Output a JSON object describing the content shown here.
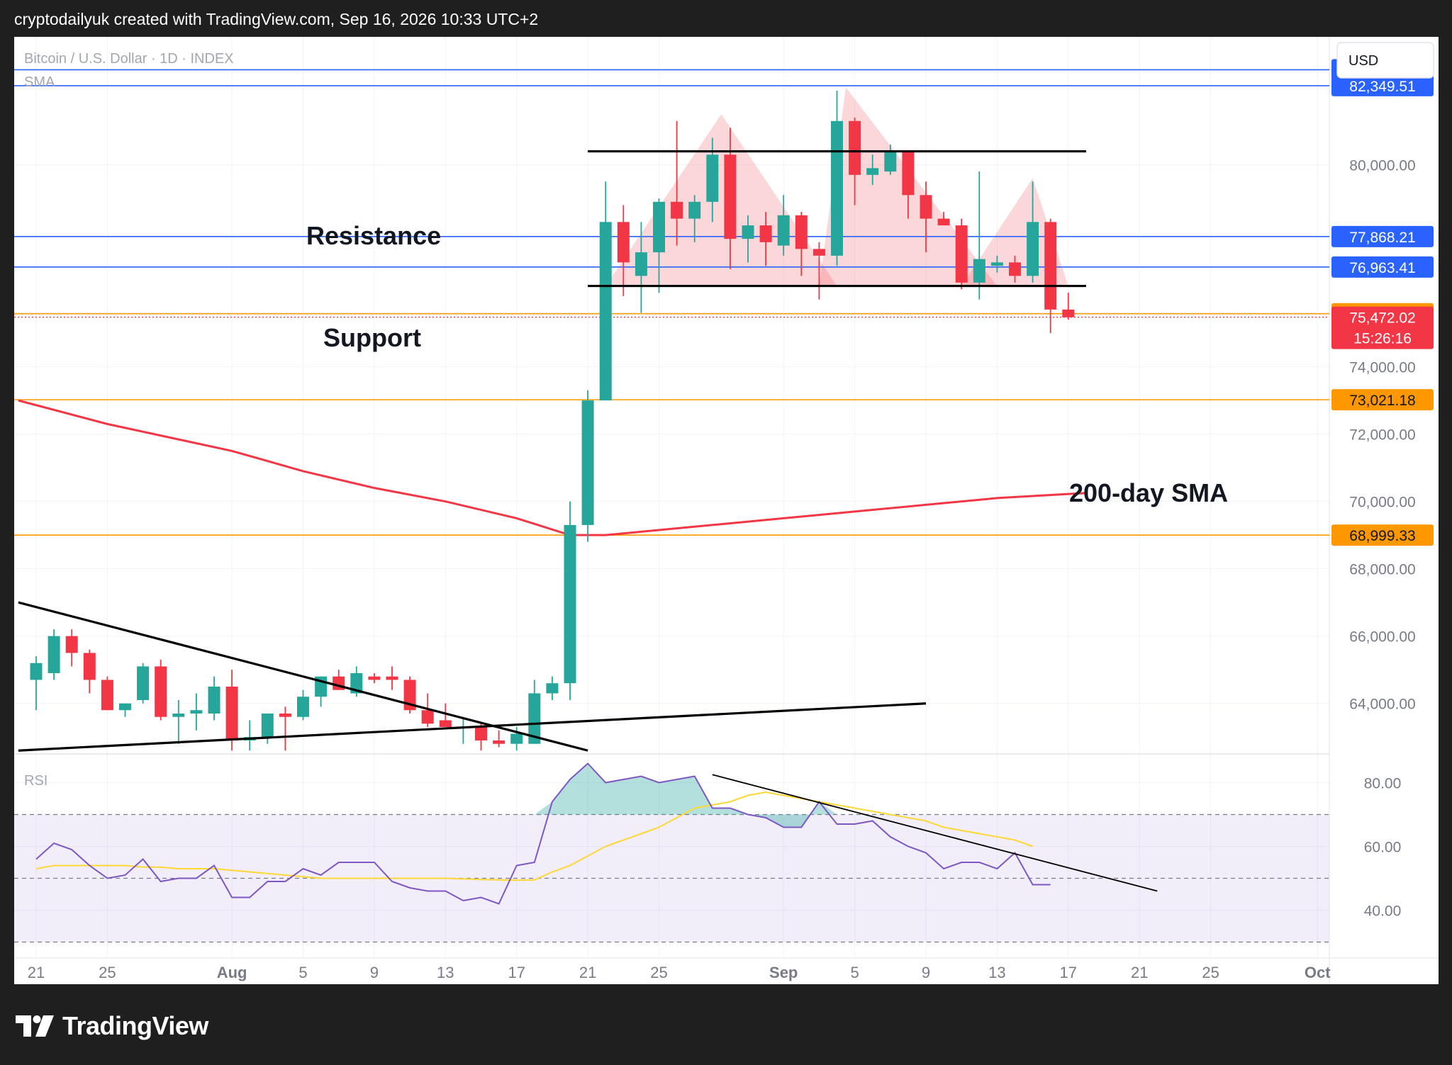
{
  "attribution": "cryptodailyuk created with TradingView.com, Sep 16, 2026 10:33 UTC+2",
  "chart_header": {
    "symbol": "Bitcoin / U.S. Dollar · 1D · INDEX",
    "indicator": "SMA",
    "currency_button": "USD",
    "rsi_label": "RSI"
  },
  "annotations": {
    "resistance": "Resistance",
    "support": "Support",
    "sma200": "200-day SMA"
  },
  "footer": {
    "brand": "TradingView"
  },
  "colors": {
    "up": "#26a69a",
    "down": "#f23645",
    "blue_line": "#2962ff",
    "orange_line": "#ff9800",
    "sma": "#f23645",
    "rsi": "#7e57c2",
    "rsi_ma": "#fdd835"
  },
  "chart_data": [
    {
      "type": "candlestick",
      "title": "Bitcoin / U.S. Dollar · 1D · INDEX",
      "ylim": [
        62500,
        83800
      ],
      "y_ticks": [
        "80,000.00",
        "74,000.00",
        "72,000.00",
        "70,000.00",
        "68,000.00",
        "66,000.00",
        "64,000.00"
      ],
      "y_tick_values": [
        80000,
        74000,
        72000,
        70000,
        68000,
        66000,
        64000
      ],
      "x_ticks": [
        {
          "label": "21",
          "day": 0,
          "bold": false
        },
        {
          "label": "25",
          "day": 4,
          "bold": false
        },
        {
          "label": "Aug",
          "day": 11,
          "bold": true
        },
        {
          "label": "5",
          "day": 15,
          "bold": false
        },
        {
          "label": "9",
          "day": 19,
          "bold": false
        },
        {
          "label": "13",
          "day": 23,
          "bold": false
        },
        {
          "label": "17",
          "day": 27,
          "bold": false
        },
        {
          "label": "21",
          "day": 31,
          "bold": false
        },
        {
          "label": "25",
          "day": 35,
          "bold": false
        },
        {
          "label": "Sep",
          "day": 42,
          "bold": true
        },
        {
          "label": "5",
          "day": 46,
          "bold": false
        },
        {
          "label": "9",
          "day": 50,
          "bold": false
        },
        {
          "label": "13",
          "day": 54,
          "bold": false
        },
        {
          "label": "17",
          "day": 58,
          "bold": false
        },
        {
          "label": "21",
          "day": 62,
          "bold": false
        },
        {
          "label": "25",
          "day": 66,
          "bold": false
        },
        {
          "label": "Oct",
          "day": 72,
          "bold": true
        }
      ],
      "candles": [
        {
          "o": 64700,
          "h": 65400,
          "l": 63800,
          "c": 65200
        },
        {
          "o": 64900,
          "h": 66200,
          "l": 64700,
          "c": 66000
        },
        {
          "o": 66000,
          "h": 66200,
          "l": 65100,
          "c": 65500
        },
        {
          "o": 65500,
          "h": 65600,
          "l": 64300,
          "c": 64700
        },
        {
          "o": 64700,
          "h": 64800,
          "l": 63800,
          "c": 63800
        },
        {
          "o": 63800,
          "h": 64000,
          "l": 63600,
          "c": 64000
        },
        {
          "o": 64100,
          "h": 65200,
          "l": 64000,
          "c": 65100
        },
        {
          "o": 65100,
          "h": 65300,
          "l": 63500,
          "c": 63600
        },
        {
          "o": 63600,
          "h": 64100,
          "l": 62800,
          "c": 63700
        },
        {
          "o": 63700,
          "h": 64300,
          "l": 63200,
          "c": 63800
        },
        {
          "o": 63700,
          "h": 64800,
          "l": 63500,
          "c": 64500
        },
        {
          "o": 64500,
          "h": 65000,
          "l": 62600,
          "c": 62900
        },
        {
          "o": 62900,
          "h": 63500,
          "l": 62600,
          "c": 63000
        },
        {
          "o": 63000,
          "h": 63700,
          "l": 62800,
          "c": 63700
        },
        {
          "o": 63700,
          "h": 63900,
          "l": 62600,
          "c": 63600
        },
        {
          "o": 63600,
          "h": 64400,
          "l": 63500,
          "c": 64200
        },
        {
          "o": 64200,
          "h": 64800,
          "l": 63900,
          "c": 64800
        },
        {
          "o": 64800,
          "h": 65000,
          "l": 64400,
          "c": 64400
        },
        {
          "o": 64300,
          "h": 65100,
          "l": 64200,
          "c": 64900
        },
        {
          "o": 64800,
          "h": 64900,
          "l": 64600,
          "c": 64700
        },
        {
          "o": 64800,
          "h": 65100,
          "l": 64400,
          "c": 64700
        },
        {
          "o": 64700,
          "h": 64800,
          "l": 63700,
          "c": 63800
        },
        {
          "o": 63800,
          "h": 64300,
          "l": 63300,
          "c": 63400
        },
        {
          "o": 63500,
          "h": 64000,
          "l": 63300,
          "c": 63300
        },
        {
          "o": 63300,
          "h": 63600,
          "l": 62800,
          "c": 63300
        },
        {
          "o": 63300,
          "h": 63400,
          "l": 62600,
          "c": 62900
        },
        {
          "o": 62900,
          "h": 63200,
          "l": 62700,
          "c": 62800
        },
        {
          "o": 62800,
          "h": 63300,
          "l": 62600,
          "c": 63100
        },
        {
          "o": 62800,
          "h": 64700,
          "l": 62800,
          "c": 64300
        },
        {
          "o": 64300,
          "h": 64800,
          "l": 64100,
          "c": 64600
        },
        {
          "o": 64600,
          "h": 70000,
          "l": 64100,
          "c": 69300
        },
        {
          "o": 69300,
          "h": 73300,
          "l": 68800,
          "c": 73000
        },
        {
          "o": 73000,
          "h": 79500,
          "l": 73000,
          "c": 78300
        },
        {
          "o": 78300,
          "h": 78800,
          "l": 76100,
          "c": 77100
        },
        {
          "o": 76700,
          "h": 78300,
          "l": 75600,
          "c": 77400
        },
        {
          "o": 77400,
          "h": 79000,
          "l": 76200,
          "c": 78900
        },
        {
          "o": 78900,
          "h": 81300,
          "l": 77600,
          "c": 78400
        },
        {
          "o": 78400,
          "h": 79100,
          "l": 77700,
          "c": 78900
        },
        {
          "o": 78900,
          "h": 80800,
          "l": 78300,
          "c": 80300
        },
        {
          "o": 80300,
          "h": 81100,
          "l": 76900,
          "c": 77800
        },
        {
          "o": 77800,
          "h": 78500,
          "l": 77100,
          "c": 78200
        },
        {
          "o": 78200,
          "h": 78600,
          "l": 77000,
          "c": 77700
        },
        {
          "o": 77600,
          "h": 79100,
          "l": 77300,
          "c": 78500
        },
        {
          "o": 78500,
          "h": 78600,
          "l": 76700,
          "c": 77500
        },
        {
          "o": 77500,
          "h": 77700,
          "l": 76000,
          "c": 77300
        },
        {
          "o": 77300,
          "h": 82200,
          "l": 77000,
          "c": 81300
        },
        {
          "o": 81300,
          "h": 81400,
          "l": 78800,
          "c": 79700
        },
        {
          "o": 79700,
          "h": 80300,
          "l": 79400,
          "c": 79900
        },
        {
          "o": 79800,
          "h": 80600,
          "l": 79700,
          "c": 80400
        },
        {
          "o": 80400,
          "h": 80400,
          "l": 78400,
          "c": 79100
        },
        {
          "o": 79100,
          "h": 79500,
          "l": 77400,
          "c": 78400
        },
        {
          "o": 78400,
          "h": 78600,
          "l": 78200,
          "c": 78200
        },
        {
          "o": 78200,
          "h": 78400,
          "l": 76300,
          "c": 76500
        },
        {
          "o": 76500,
          "h": 79800,
          "l": 76000,
          "c": 77200
        },
        {
          "o": 77000,
          "h": 77300,
          "l": 76800,
          "c": 77100
        },
        {
          "o": 77100,
          "h": 77300,
          "l": 76500,
          "c": 76700
        },
        {
          "o": 76700,
          "h": 79500,
          "l": 76500,
          "c": 78300
        },
        {
          "o": 78300,
          "h": 78400,
          "l": 75000,
          "c": 75700
        },
        {
          "o": 75700,
          "h": 76200,
          "l": 75400,
          "c": 75470
        }
      ],
      "sma200": [
        {
          "day": -1,
          "value": 73000
        },
        {
          "day": 4,
          "value": 72300
        },
        {
          "day": 11,
          "value": 71500
        },
        {
          "day": 15,
          "value": 70900
        },
        {
          "day": 19,
          "value": 70400
        },
        {
          "day": 23,
          "value": 70000
        },
        {
          "day": 27,
          "value": 69500
        },
        {
          "day": 30,
          "value": 69000
        },
        {
          "day": 32,
          "value": 69000
        },
        {
          "day": 34,
          "value": 69100
        },
        {
          "day": 38,
          "value": 69300
        },
        {
          "day": 42,
          "value": 69500
        },
        {
          "day": 46,
          "value": 69700
        },
        {
          "day": 50,
          "value": 69900
        },
        {
          "day": 54,
          "value": 70100
        },
        {
          "day": 59,
          "value": 70250
        }
      ],
      "horizontal_levels": [
        {
          "value": 82823.44,
          "label": "82,823.44",
          "color": "blue"
        },
        {
          "value": 82349.51,
          "label": "82,349.51",
          "color": "blue"
        },
        {
          "value": 77868.21,
          "label": "77,868.21",
          "color": "blue"
        },
        {
          "value": 76963.41,
          "label": "76,963.41",
          "color": "blue"
        },
        {
          "value": 75576.75,
          "label": "75,576.75",
          "color": "orange"
        },
        {
          "value": 73021.18,
          "label": "73,021.18",
          "color": "orange"
        },
        {
          "value": 68999.33,
          "label": "68,999.33",
          "color": "orange"
        }
      ],
      "last_price": {
        "value": 75472.02,
        "label": "75,472.02",
        "countdown": "15:26:16"
      },
      "trendlines": [
        {
          "from": {
            "day": -1,
            "value": 67000
          },
          "to": {
            "day": 31,
            "value": 62600
          }
        },
        {
          "from": {
            "day": -1,
            "value": 62600
          },
          "to": {
            "day": 50,
            "value": 64000
          }
        },
        {
          "from": {
            "day": 31,
            "value": 80400
          },
          "to": {
            "day": 59,
            "value": 80400
          }
        },
        {
          "from": {
            "day": 31,
            "value": 76400
          },
          "to": {
            "day": 59,
            "value": 76400
          }
        }
      ],
      "shaded_peaks": [
        {
          "points": [
            {
              "day": 32,
              "value": 76400
            },
            {
              "day": 38.5,
              "value": 81500
            },
            {
              "day": 45,
              "value": 76400
            }
          ]
        },
        {
          "points": [
            {
              "day": 44,
              "value": 76400
            },
            {
              "day": 45.5,
              "value": 82300
            },
            {
              "day": 54,
              "value": 76400
            }
          ]
        },
        {
          "points": [
            {
              "day": 52,
              "value": 76400
            },
            {
              "day": 56,
              "value": 79600
            },
            {
              "day": 58,
              "value": 76400
            }
          ]
        }
      ]
    },
    {
      "type": "line",
      "title": "RSI",
      "ylim": [
        25,
        89
      ],
      "y_ticks": [
        "80.00",
        "60.00",
        "40.00"
      ],
      "y_tick_values": [
        80,
        60,
        40
      ],
      "bands": {
        "upper": 70,
        "middle": 50,
        "lower": 30
      },
      "series": [
        {
          "key": "rsi",
          "values": [
            56,
            61,
            59,
            54,
            50,
            51,
            56,
            49,
            50,
            50,
            54,
            44,
            44,
            49,
            49,
            53,
            51,
            55,
            55,
            55,
            49,
            47,
            46,
            46,
            43,
            44,
            42,
            54,
            55,
            74,
            81,
            86,
            80,
            81,
            82,
            80,
            81,
            82,
            72,
            72,
            70,
            69,
            66,
            66,
            74,
            67,
            67,
            68,
            63,
            60,
            58,
            53,
            55,
            55,
            53,
            58,
            48,
            48
          ]
        },
        {
          "key": "rsi_ma",
          "start_day": 0,
          "values": [
            53,
            54,
            54,
            54,
            54,
            54,
            53.5,
            53.5,
            53,
            53,
            53,
            52.5,
            52,
            51.5,
            51,
            50.5,
            50,
            50,
            50,
            50,
            50,
            50,
            50,
            50,
            49.8,
            49.6,
            49.5,
            49.4,
            49.5,
            52,
            54,
            57,
            60,
            62,
            64,
            66,
            69,
            72,
            73,
            74,
            76,
            77,
            76,
            75,
            74,
            73,
            72,
            71,
            70,
            69,
            68,
            66,
            65,
            64,
            63,
            62,
            60
          ]
        }
      ],
      "trendline": {
        "from": {
          "day": 38,
          "value": 82.5
        },
        "to": {
          "day": 63,
          "value": 46
        }
      }
    }
  ]
}
